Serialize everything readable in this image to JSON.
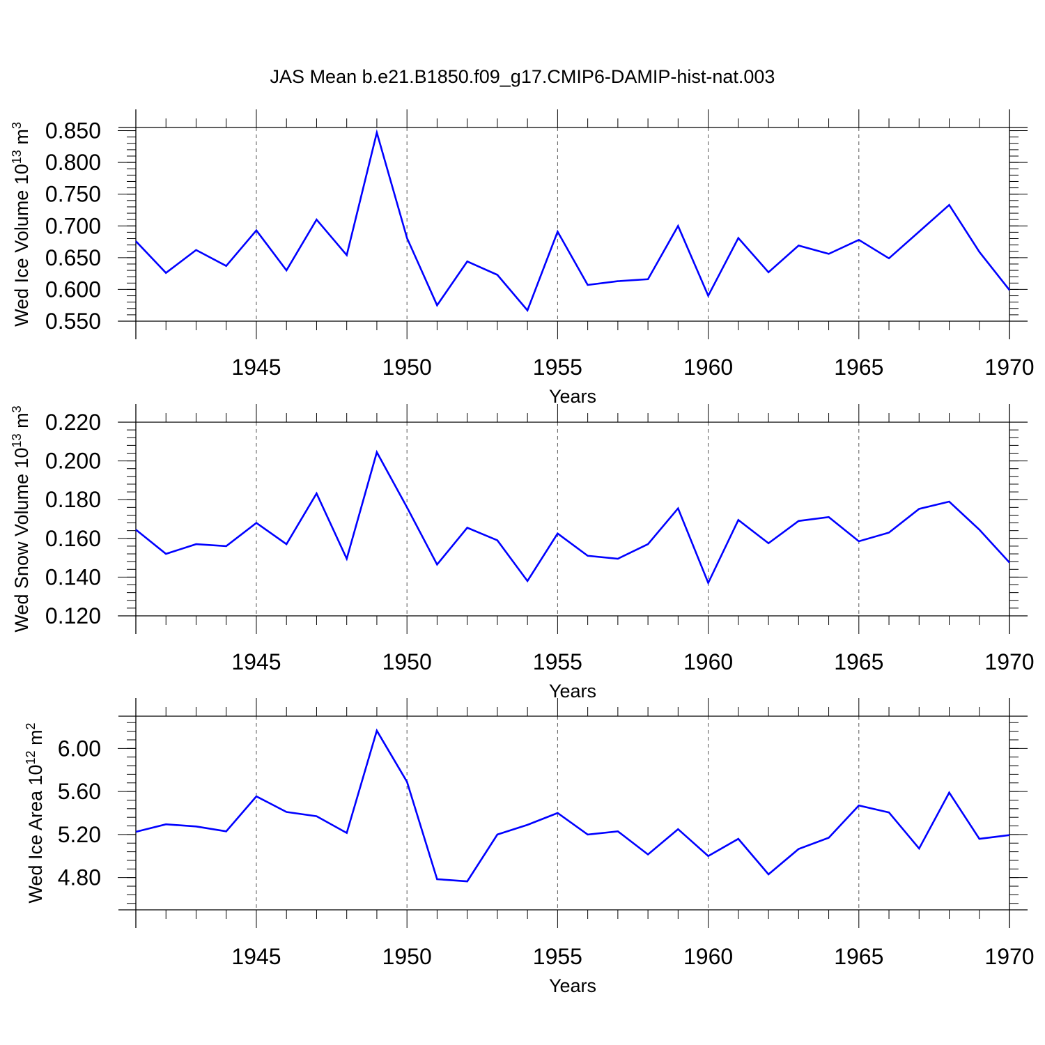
{
  "title": "JAS Mean b.e21.B1850.f09_g17.CMIP6-DAMIP-hist-nat.003",
  "colors": {
    "line": "#0000ff",
    "axis": "#000000",
    "grid": "#555555"
  },
  "chart_data": [
    {
      "type": "line",
      "ylabel_main": "Wed Ice Volume 10",
      "ylabel_exp": "13",
      "ylabel_unit": " m",
      "ylabel_unit_exp": "3",
      "xlabel": "Years",
      "xlim": [
        1941,
        1970
      ],
      "ylim": [
        0.55,
        0.855
      ],
      "yticks": [
        0.55,
        0.6,
        0.65,
        0.7,
        0.75,
        0.8,
        0.85
      ],
      "ytick_labels": [
        "0.550",
        "0.600",
        "0.650",
        "0.700",
        "0.750",
        "0.800",
        "0.850"
      ],
      "xticks": [
        1945,
        1950,
        1955,
        1960,
        1965,
        1970
      ],
      "xtick_labels": [
        "1945",
        "1950",
        "1955",
        "1960",
        "1965",
        "1970"
      ],
      "x": [
        1941,
        1942,
        1943,
        1944,
        1945,
        1946,
        1947,
        1948,
        1949,
        1950,
        1951,
        1952,
        1953,
        1954,
        1955,
        1956,
        1957,
        1958,
        1959,
        1960,
        1961,
        1962,
        1963,
        1964,
        1965,
        1966,
        1967,
        1968,
        1969,
        1970
      ],
      "series": [
        {
          "values": [
            0.676,
            0.626,
            0.662,
            0.637,
            0.693,
            0.63,
            0.71,
            0.654,
            0.847,
            0.681,
            0.575,
            0.644,
            0.623,
            0.567,
            0.691,
            0.607,
            0.613,
            0.616,
            0.7,
            0.59,
            0.681,
            0.627,
            0.669,
            0.656,
            0.678,
            0.649,
            0.691,
            0.733,
            0.659,
            0.599
          ]
        }
      ],
      "grid_vertical": [
        1945,
        1950,
        1955,
        1960,
        1965
      ]
    },
    {
      "type": "line",
      "ylabel_main": "Wed Snow Volume 10",
      "ylabel_exp": "13",
      "ylabel_unit": " m",
      "ylabel_unit_exp": "3",
      "xlabel": "Years",
      "xlim": [
        1941,
        1970
      ],
      "ylim": [
        0.12,
        0.22
      ],
      "yticks": [
        0.12,
        0.14,
        0.16,
        0.18,
        0.2,
        0.22
      ],
      "ytick_labels": [
        "0.120",
        "0.140",
        "0.160",
        "0.180",
        "0.200",
        "0.220"
      ],
      "xticks": [
        1945,
        1950,
        1955,
        1960,
        1965,
        1970
      ],
      "xtick_labels": [
        "1945",
        "1950",
        "1955",
        "1960",
        "1965",
        "1970"
      ],
      "x": [
        1941,
        1942,
        1943,
        1944,
        1945,
        1946,
        1947,
        1948,
        1949,
        1950,
        1951,
        1952,
        1953,
        1954,
        1955,
        1956,
        1957,
        1958,
        1959,
        1960,
        1961,
        1962,
        1963,
        1964,
        1965,
        1966,
        1967,
        1968,
        1969,
        1970
      ],
      "series": [
        {
          "values": [
            0.1645,
            0.152,
            0.157,
            0.156,
            0.168,
            0.157,
            0.1832,
            0.1495,
            0.2045,
            0.176,
            0.1465,
            0.1655,
            0.159,
            0.138,
            0.1625,
            0.151,
            0.1495,
            0.157,
            0.1755,
            0.137,
            0.1695,
            0.1575,
            0.169,
            0.171,
            0.1585,
            0.163,
            0.1752,
            0.179,
            0.1645,
            0.1475
          ]
        }
      ],
      "grid_vertical": [
        1945,
        1950,
        1955,
        1960,
        1965
      ]
    },
    {
      "type": "line",
      "ylabel_main": "Wed Ice Area 10",
      "ylabel_exp": "12",
      "ylabel_unit": " m",
      "ylabel_unit_exp": "2",
      "xlabel": "Years",
      "xlim": [
        1941,
        1970
      ],
      "ylim": [
        4.5,
        6.3
      ],
      "yticks": [
        4.8,
        5.2,
        5.6,
        6.0
      ],
      "ytick_labels": [
        "4.80",
        "5.20",
        "5.60",
        "6.00"
      ],
      "xticks": [
        1945,
        1950,
        1955,
        1960,
        1965,
        1970
      ],
      "xtick_labels": [
        "1945",
        "1950",
        "1955",
        "1960",
        "1965",
        "1970"
      ],
      "x": [
        1941,
        1942,
        1943,
        1944,
        1945,
        1946,
        1947,
        1948,
        1949,
        1950,
        1951,
        1952,
        1953,
        1954,
        1955,
        1956,
        1957,
        1958,
        1959,
        1960,
        1961,
        1962,
        1963,
        1964,
        1965,
        1966,
        1967,
        1968,
        1969,
        1970
      ],
      "series": [
        {
          "values": [
            5.225,
            5.295,
            5.275,
            5.23,
            5.555,
            5.41,
            5.37,
            5.215,
            6.165,
            5.69,
            4.785,
            4.765,
            5.2,
            5.29,
            5.4,
            5.2,
            5.23,
            5.015,
            5.25,
            5.0,
            5.16,
            4.83,
            5.065,
            5.17,
            5.47,
            5.405,
            5.07,
            5.59,
            5.16,
            5.195
          ]
        }
      ],
      "grid_vertical": [
        1945,
        1950,
        1955,
        1960,
        1965
      ]
    }
  ]
}
